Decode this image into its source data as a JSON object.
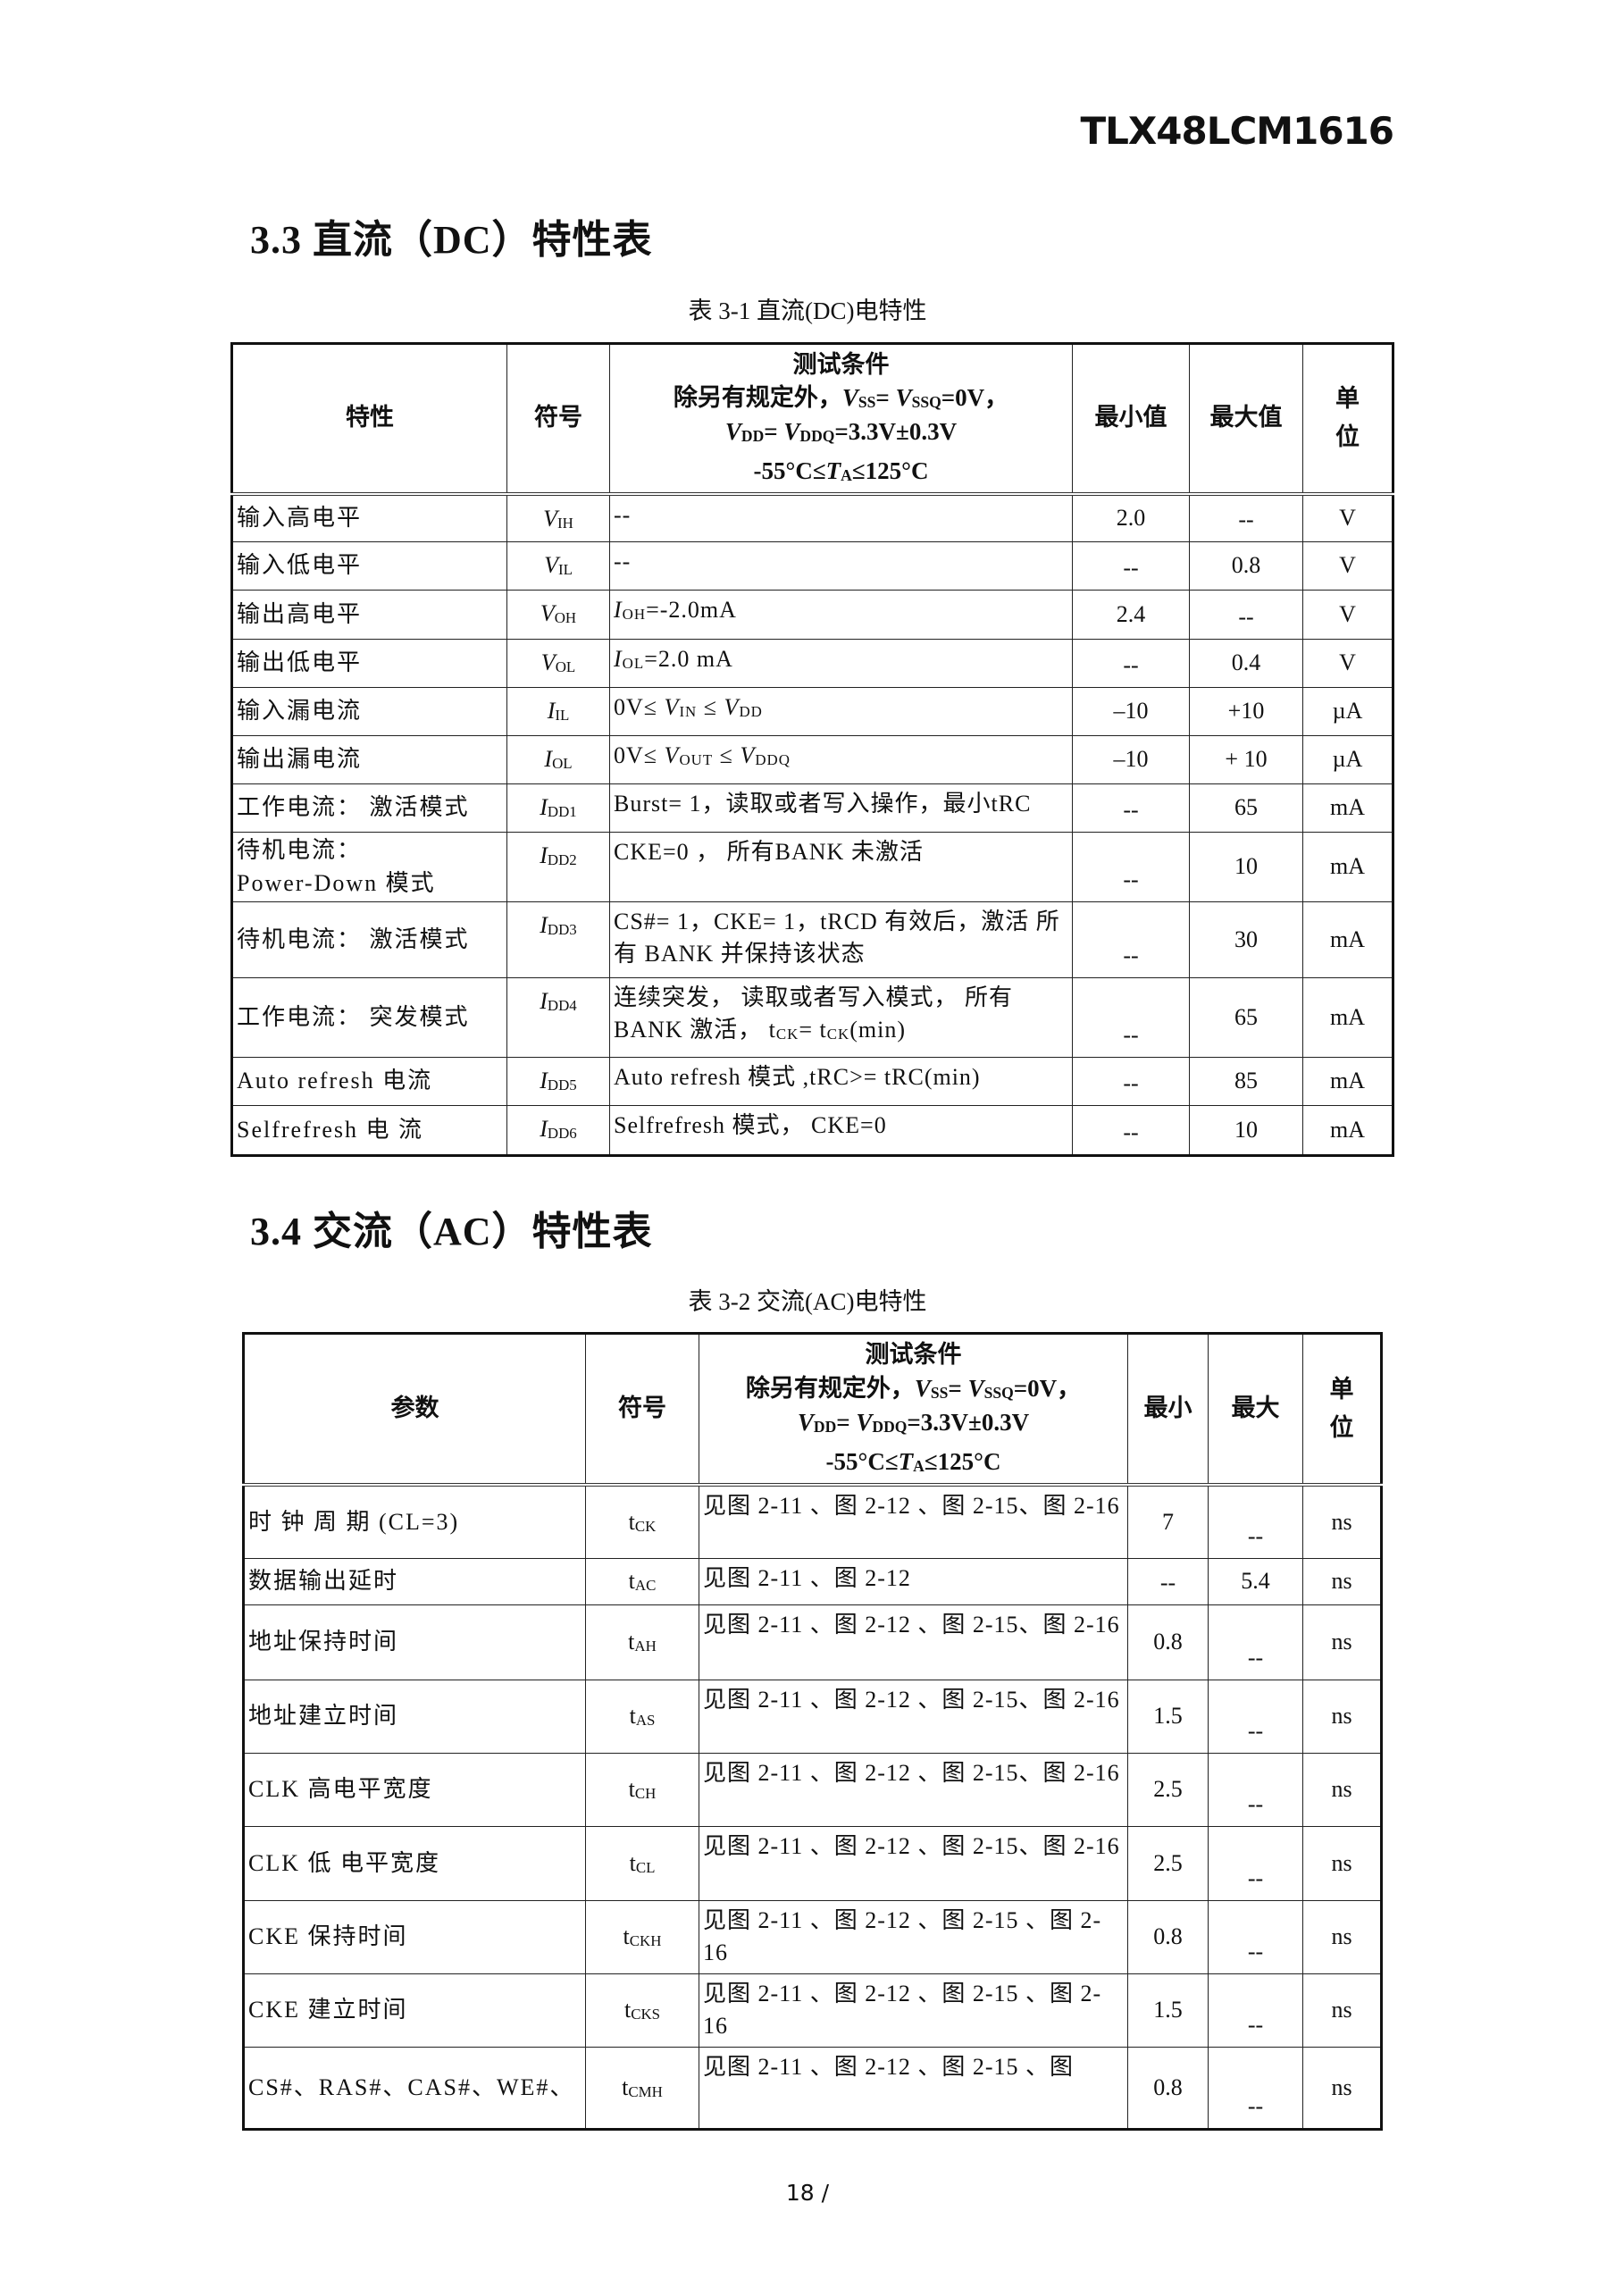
{
  "doc_id": "TLX48LCM1616",
  "dc": {
    "section_title": "3.3 直流（DC）特性表",
    "caption": "表  3-1   直流(DC)电特性",
    "headers": {
      "param": "特性",
      "symbol": "符号",
      "cond": [
        "测试条件",
        [
          "除另有规定外，",
          {
            "i": "V"
          },
          {
            "sub": "SS"
          },
          "= ",
          {
            "i": "V"
          },
          {
            "sub": "SSQ"
          },
          "=0V，"
        ],
        [
          {
            "i": "V"
          },
          {
            "sub": "DD"
          },
          "= ",
          {
            "i": "V"
          },
          {
            "sub": "DDQ"
          },
          "=3.3V±0.3V"
        ],
        [
          "-55°C≤",
          {
            "i": "T"
          },
          {
            "sub": "A"
          },
          "≤125°C"
        ]
      ],
      "min": "最小值",
      "max": "最大值",
      "unit": "单位"
    },
    "rows": [
      {
        "param": "输入高电平",
        "sym": "V|IH",
        "cond": "--",
        "min": "2.0",
        "max": "--",
        "unit": "V"
      },
      {
        "param": "输入低电平",
        "sym": "V|IL",
        "cond": "--",
        "min": "--",
        "max": "0.8",
        "unit": "V"
      },
      {
        "param": "输出高电平",
        "sym": "V|OH",
        "cond": [
          {
            "i": "I"
          },
          {
            "sub": "OH"
          },
          "=-2.0mA"
        ],
        "min": "2.4",
        "max": "--",
        "unit": "V"
      },
      {
        "param": "输出低电平",
        "sym": "V|OL",
        "cond": [
          {
            "i": "I"
          },
          {
            "sub": "OL"
          },
          "=2.0 mA"
        ],
        "min": "--",
        "max": "0.4",
        "unit": "V"
      },
      {
        "param": "输入漏电流",
        "sym": "I|IL",
        "cond": [
          "0V≤ ",
          {
            "i": "V"
          },
          {
            "sub": "IN"
          },
          " ≤ ",
          {
            "i": "V"
          },
          {
            "sub": "DD"
          }
        ],
        "min": "–10",
        "max": "+10",
        "unit": "µA"
      },
      {
        "param": "输出漏电流",
        "sym": "I|OL",
        "cond": [
          "0V≤ ",
          {
            "i": "V"
          },
          {
            "sub": "OUT"
          },
          " ≤ ",
          {
            "i": "V"
          },
          {
            "sub": "DDQ"
          }
        ],
        "min": "–10",
        "max": "+ 10",
        "unit": "µA"
      },
      {
        "param": "工作电流： 激活模式",
        "sym": "I|DD1",
        "cond": "Burst= 1，读取或者写入操作，最小tRC",
        "min": "--",
        "max": "65",
        "unit": "mA"
      },
      {
        "param": "待机电流：\nPower-Down 模式",
        "sym": "I|DD2",
        "cond": "CKE=0 ， 所有BANK 未激活",
        "min": "--",
        "max": "10",
        "unit": "mA"
      },
      {
        "param": "待机电流： 激活模式",
        "sym": "I|DD3",
        "cond": "CS#= 1，CKE= 1，tRCD 有效后，激活 所有 BANK 并保持该状态",
        "min": "--",
        "max": "30",
        "unit": "mA"
      },
      {
        "param": "工作电流： 突发模式",
        "sym": "I|DD4",
        "cond": [
          "连续突发， 读取或者写入模式， 所有 BANK 激活， t",
          {
            "sub": "CK"
          },
          "= t",
          {
            "sub": "CK"
          },
          "(min)"
        ],
        "min": "--",
        "max": "65",
        "unit": "mA"
      },
      {
        "param": "Auto refresh   电流",
        "sym": "I|DD5",
        "cond": "Auto refresh 模式 ,tRC>= tRC(min)",
        "min": "--",
        "max": "85",
        "unit": "mA"
      },
      {
        "param": "Selfrefresh   电 流",
        "sym": "I|DD6",
        "cond": "Selfrefresh 模式， CKE=0",
        "min": "--",
        "max": "10",
        "unit": "mA"
      }
    ]
  },
  "ac": {
    "section_title": "3.4 交流（AC）特性表",
    "caption": "表  3-2   交流(AC)电特性",
    "headers": {
      "param": "参数",
      "symbol": "符号",
      "min": "最小",
      "max": "最大",
      "unit": "单位"
    },
    "rows": [
      {
        "param": "时 钟 周 期 (CL=3)",
        "sym": "t|CK",
        "cond": "见图 2-11 、图 2-12 、图  2-15、图 2-16",
        "min": "7",
        "max": "--",
        "unit": "ns"
      },
      {
        "param": "数据输出延时",
        "sym": "t|AC",
        "cond": "见图 2-11 、图  2-12",
        "min": "--",
        "max": "5.4",
        "unit": "ns"
      },
      {
        "param": "地址保持时间",
        "sym": "t|AH",
        "cond": "见图 2-11 、图 2-12 、图  2-15、图 2-16",
        "min": "0.8",
        "max": "--",
        "unit": "ns"
      },
      {
        "param": "地址建立时间",
        "sym": "t|AS",
        "cond": "见图 2-11 、图 2-12 、图  2-15、图 2-16",
        "min": "1.5",
        "max": "--",
        "unit": "ns"
      },
      {
        "param": "CLK 高电平宽度",
        "sym": "t|CH",
        "cond": "见图 2-11 、图 2-12 、图  2-15、图 2-16",
        "min": "2.5",
        "max": "--",
        "unit": "ns"
      },
      {
        "param": "CLK 低 电平宽度",
        "sym": "t|CL",
        "cond": "见图 2-11 、图 2-12 、图  2-15、图 2-16",
        "min": "2.5",
        "max": "--",
        "unit": "ns"
      },
      {
        "param": "CKE 保持时间",
        "sym": "t|CKH",
        "cond": "见图 2-11 、图 2-12 、图 2-15 、图 2-16",
        "min": "0.8",
        "max": "--",
        "unit": "ns"
      },
      {
        "param": "CKE 建立时间",
        "sym": "t|CKS",
        "cond": "见图 2-11 、图 2-12 、图 2-15 、图 2-16",
        "min": "1.5",
        "max": "--",
        "unit": "ns"
      },
      {
        "param": "CS#、RAS#、CAS#、WE#、",
        "sym": "t|CMH",
        "cond": "见图 2-11 、图  2-12 、图 2-15 、图",
        "min": "0.8",
        "max": "--",
        "unit": "ns"
      }
    ]
  },
  "page_number": "18 /"
}
